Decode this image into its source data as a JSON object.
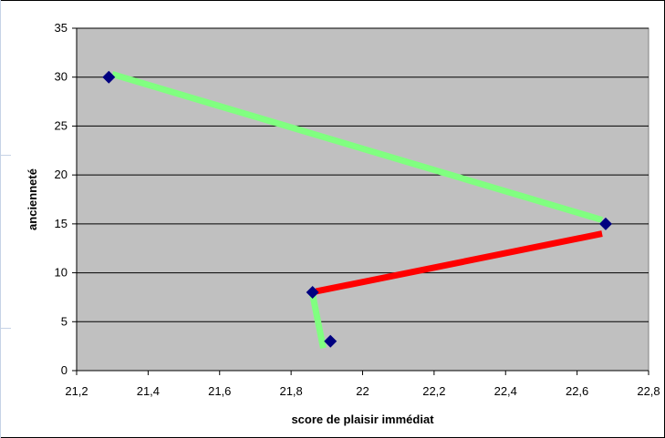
{
  "chart_data": {
    "type": "scatter",
    "title": "",
    "xlabel": "score de plaisir immédiat",
    "ylabel": "ancienneté",
    "xlim": [
      21.2,
      22.8
    ],
    "ylim": [
      0,
      35
    ],
    "x_tick_labels": [
      "21,2",
      "21,4",
      "21,6",
      "21,8",
      "22",
      "22,2",
      "22,4",
      "22,6",
      "22,8"
    ],
    "y_tick_labels": [
      "0",
      "5",
      "10",
      "15",
      "20",
      "25",
      "30",
      "35"
    ],
    "grid": "horizontal",
    "plot_background": "#c0c0c0",
    "series": [
      {
        "marker": "diamond",
        "color": "#000080",
        "points": [
          {
            "x": 21.29,
            "y": 30
          },
          {
            "x": 22.68,
            "y": 15
          },
          {
            "x": 21.86,
            "y": 8
          },
          {
            "x": 21.91,
            "y": 3
          }
        ]
      }
    ],
    "arrows": [
      {
        "from": {
          "x": 21.3,
          "y": 30.3
        },
        "to": {
          "x": 22.67,
          "y": 15.4
        },
        "color": "#80ff80"
      },
      {
        "from": {
          "x": 22.67,
          "y": 14
        },
        "to": {
          "x": 21.87,
          "y": 8.1
        },
        "color": "#ff0000"
      },
      {
        "from": {
          "x": 21.86,
          "y": 7.8
        },
        "to": {
          "x": 21.89,
          "y": 2.3
        },
        "color": "#80ff80"
      }
    ]
  }
}
